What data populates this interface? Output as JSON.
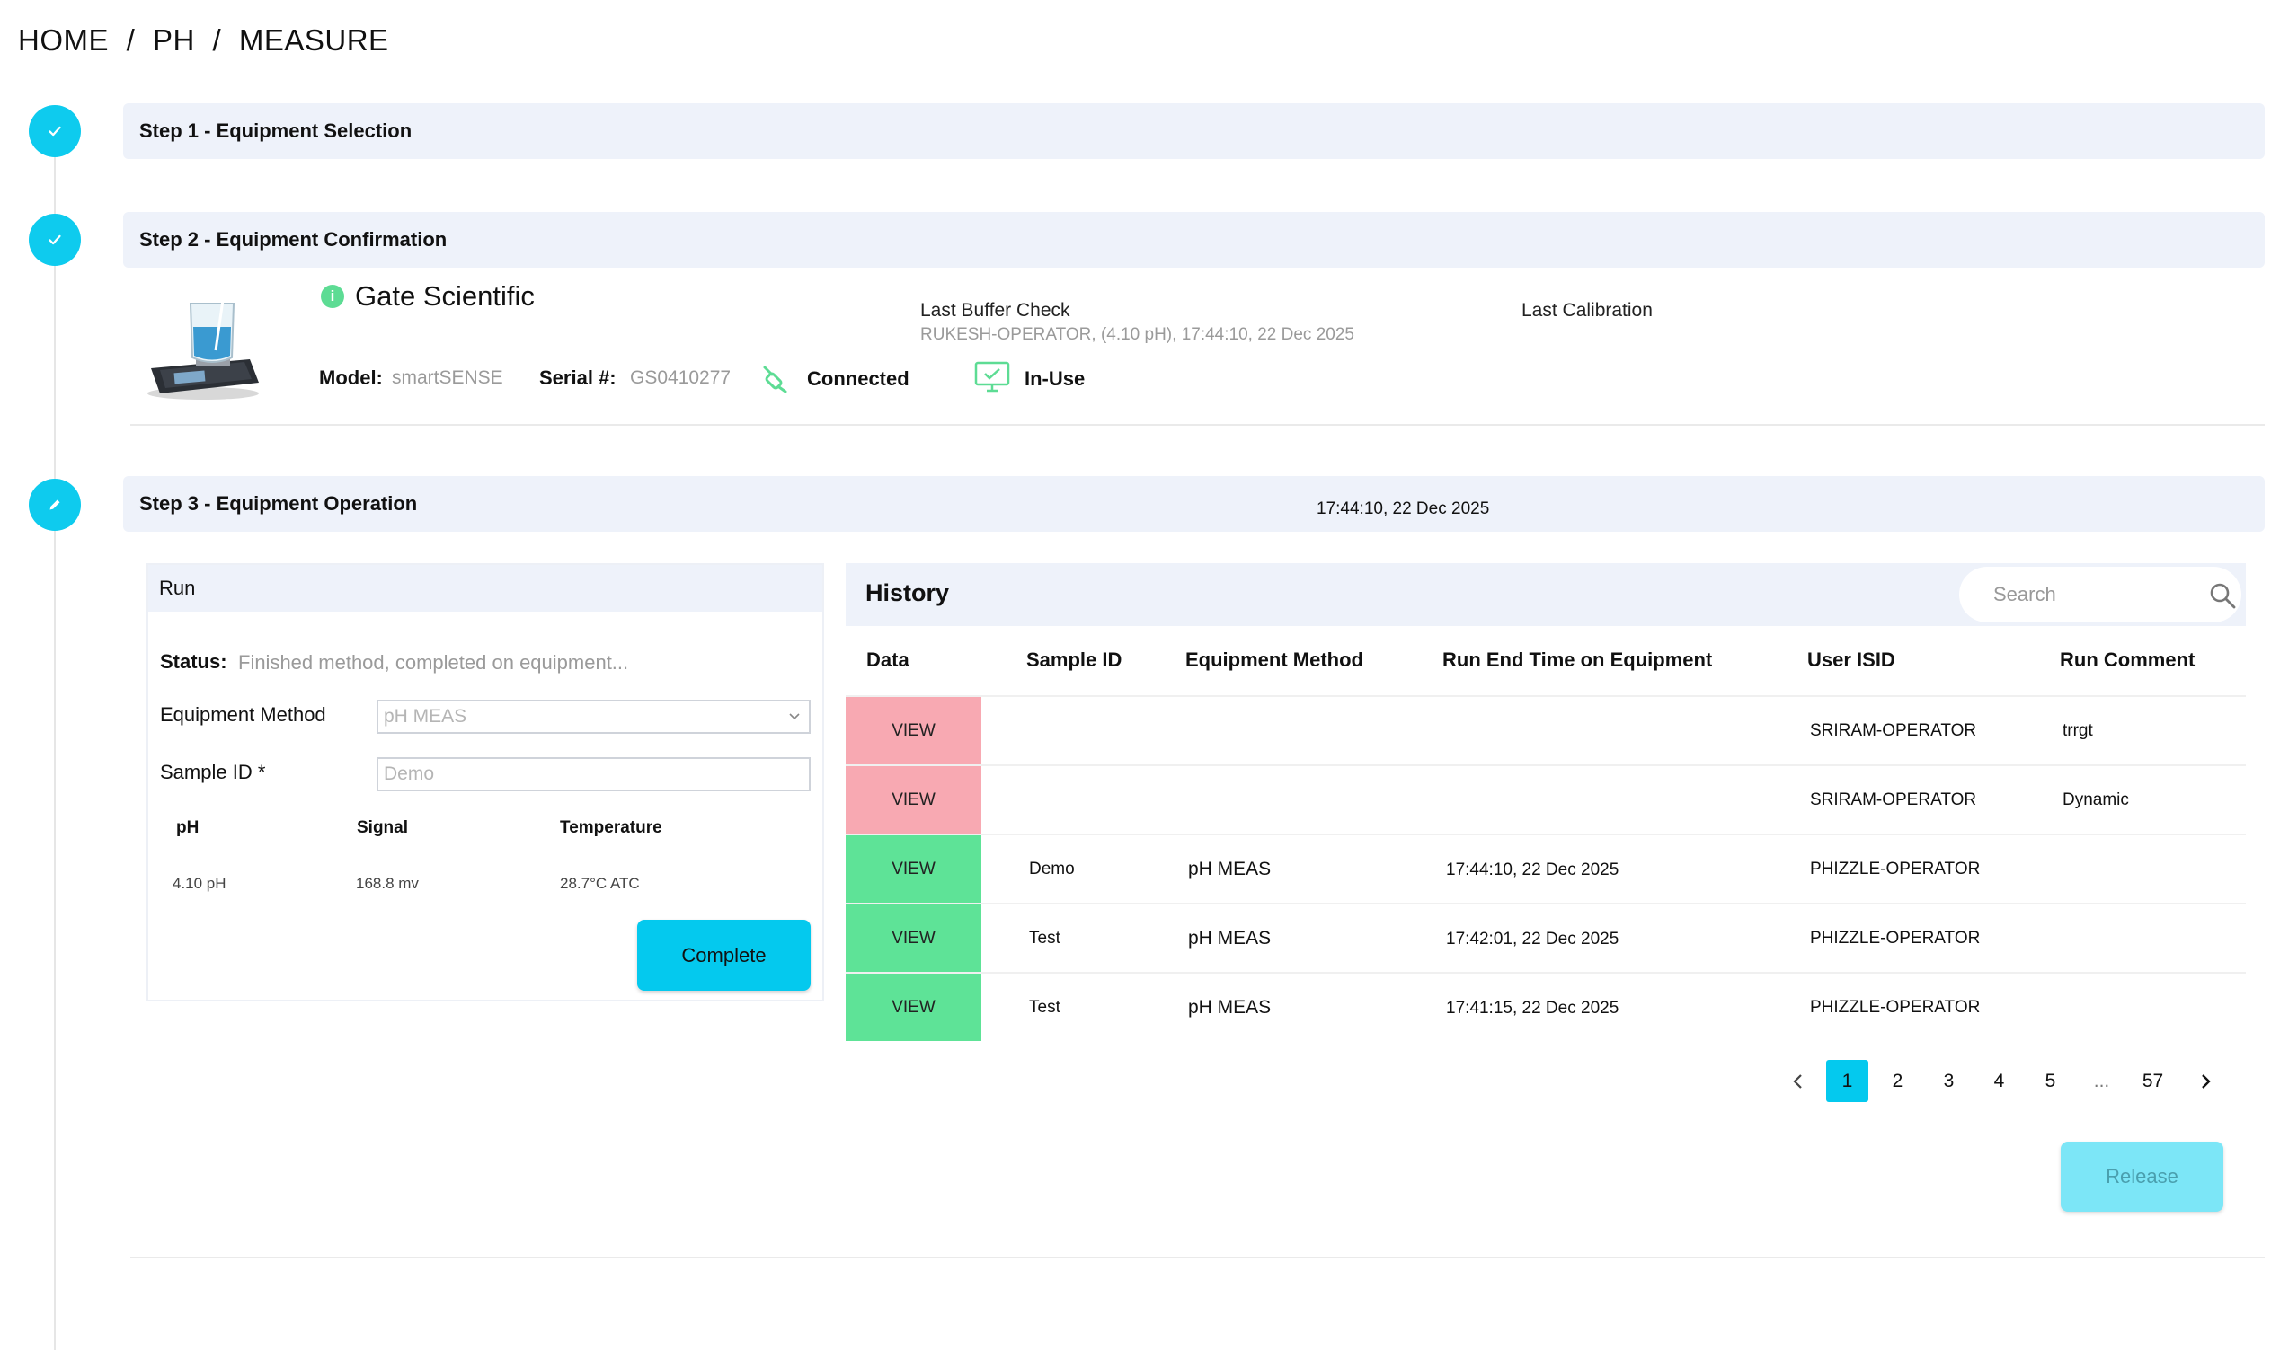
{
  "breadcrumb": {
    "items": [
      "HOME",
      "PH",
      "MEASURE"
    ],
    "separator": "/"
  },
  "steps": [
    {
      "label": "Step 1 - Equipment Selection",
      "state": "done",
      "icon": "check-icon"
    },
    {
      "label": "Step 2 - Equipment Confirmation",
      "state": "done",
      "icon": "check-icon"
    },
    {
      "label": "Step 3 - Equipment Operation",
      "state": "active",
      "icon": "pencil-icon"
    }
  ],
  "step3_timestamp": "17:44:10, 22 Dec 2025",
  "equipment": {
    "brand": "Gate Scientific",
    "model_label": "Model:",
    "model_value": "smartSENSE",
    "serial_label": "Serial #:",
    "serial_value": "GS0410277",
    "connection_status": "Connected",
    "usage_status": "In-Use",
    "last_buffer_check_title": "Last Buffer Check",
    "last_buffer_check_value": "RUKESH-OPERATOR, (4.10 pH), 17:44:10, 22 Dec 2025",
    "last_calibration_title": "Last Calibration"
  },
  "run": {
    "title": "Run",
    "status_label": "Status:",
    "status_value": "Finished method, completed on equipment...",
    "method_label": "Equipment Method",
    "method_value": "pH MEAS",
    "sample_label": "Sample ID *",
    "sample_value": "Demo",
    "measure_headers": [
      "pH",
      "Signal",
      "Temperature"
    ],
    "measure_values": [
      "4.10 pH",
      "168.8 mv",
      "28.7°C ATC"
    ],
    "complete_label": "Complete"
  },
  "history": {
    "title": "History",
    "search_placeholder": "Search",
    "columns": [
      "Data",
      "Sample ID",
      "Equipment Method",
      "Run End Time on Equipment",
      "User ISID",
      "Run Comment"
    ],
    "rows": [
      {
        "view": "VIEW",
        "view_color": "#f8a9b2",
        "sample_id": "",
        "method": "",
        "end_time": "",
        "user": "SRIRAM-OPERATOR",
        "comment": "trrgt"
      },
      {
        "view": "VIEW",
        "view_color": "#f8a9b2",
        "sample_id": "",
        "method": "",
        "end_time": "",
        "user": "SRIRAM-OPERATOR",
        "comment": "Dynamic"
      },
      {
        "view": "VIEW",
        "view_color": "#5ee397",
        "sample_id": "Demo",
        "method": "pH MEAS",
        "end_time": "17:44:10, 22 Dec 2025",
        "user": "PHIZZLE-OPERATOR",
        "comment": ""
      },
      {
        "view": "VIEW",
        "view_color": "#5ee397",
        "sample_id": "Test",
        "method": "pH MEAS",
        "end_time": "17:42:01, 22 Dec 2025",
        "user": "PHIZZLE-OPERATOR",
        "comment": ""
      },
      {
        "view": "VIEW",
        "view_color": "#5ee397",
        "sample_id": "Test",
        "method": "pH MEAS",
        "end_time": "17:41:15, 22 Dec 2025",
        "user": "PHIZZLE-OPERATOR",
        "comment": ""
      }
    ],
    "pagination": {
      "pages": [
        "1",
        "2",
        "3",
        "4",
        "5",
        "...",
        "57"
      ],
      "current": "1"
    }
  },
  "release_label": "Release",
  "colors": {
    "accent": "#04c9ee",
    "step_bar": "#eef2fa",
    "view_red": "#f8a9b2",
    "view_green": "#5ee397",
    "release": "#7ce6f7"
  }
}
